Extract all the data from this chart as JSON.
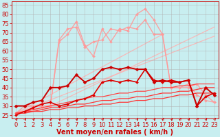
{
  "bg_color": "#c8eef0",
  "grid_color": "#b0b0b0",
  "xlabel": "Vent moyen/en rafales ( km/h )",
  "xlabel_color": "#cc0000",
  "xlabel_fontsize": 7,
  "tick_color": "#cc0000",
  "tick_fontsize": 6,
  "yticks": [
    25,
    30,
    35,
    40,
    45,
    50,
    55,
    60,
    65,
    70,
    75,
    80,
    85
  ],
  "xticks": [
    0,
    1,
    2,
    3,
    4,
    5,
    6,
    7,
    8,
    9,
    10,
    11,
    12,
    13,
    14,
    15,
    16,
    17,
    18,
    19,
    20,
    21,
    22,
    23
  ],
  "xlim": [
    -0.5,
    23.5
  ],
  "ylim": [
    23,
    87
  ],
  "series": [
    {
      "x": [
        0,
        23
      ],
      "y": [
        26,
        68
      ],
      "color": "#ffb0b0",
      "lw": 0.9,
      "marker": null,
      "alpha": 0.85,
      "zorder": 1
    },
    {
      "x": [
        0,
        17
      ],
      "y": [
        26,
        69
      ],
      "color": "#ffb0b0",
      "lw": 0.9,
      "marker": null,
      "alpha": 0.85,
      "zorder": 1
    },
    {
      "x": [
        4,
        23
      ],
      "y": [
        30,
        73
      ],
      "color": "#ffb0b0",
      "lw": 0.9,
      "marker": null,
      "alpha": 0.85,
      "zorder": 1
    },
    {
      "x": [
        0,
        1,
        2,
        3,
        4,
        5,
        6,
        7,
        8,
        9,
        10,
        11,
        12,
        13,
        14,
        15,
        16,
        17,
        18,
        19,
        20,
        21,
        22,
        23
      ],
      "y": [
        26,
        26,
        27,
        27,
        28,
        28,
        29,
        29,
        30,
        30,
        31,
        31,
        32,
        32,
        33,
        33,
        34,
        34,
        35,
        36,
        36,
        37,
        37,
        37
      ],
      "color": "#ff3333",
      "lw": 0.9,
      "marker": null,
      "alpha": 1.0,
      "zorder": 3
    },
    {
      "x": [
        0,
        1,
        2,
        3,
        4,
        5,
        6,
        7,
        8,
        9,
        10,
        11,
        12,
        13,
        14,
        15,
        16,
        17,
        18,
        19,
        20,
        21,
        22,
        23
      ],
      "y": [
        26,
        27,
        27,
        28,
        29,
        29,
        30,
        31,
        31,
        32,
        33,
        33,
        34,
        34,
        35,
        35,
        36,
        37,
        37,
        38,
        38,
        39,
        40,
        40
      ],
      "color": "#ff3333",
      "lw": 0.9,
      "marker": null,
      "alpha": 1.0,
      "zorder": 3
    },
    {
      "x": [
        0,
        1,
        2,
        3,
        4,
        5,
        6,
        7,
        8,
        9,
        10,
        11,
        12,
        13,
        14,
        15,
        16,
        17,
        18,
        19,
        20,
        21,
        22,
        23
      ],
      "y": [
        26,
        27,
        28,
        29,
        30,
        31,
        32,
        33,
        34,
        35,
        35,
        36,
        37,
        37,
        38,
        38,
        39,
        40,
        40,
        41,
        41,
        42,
        42,
        42
      ],
      "color": "#ff4444",
      "lw": 0.9,
      "marker": null,
      "alpha": 1.0,
      "zorder": 3
    },
    {
      "x": [
        0,
        1,
        2,
        3,
        4,
        5,
        6,
        7,
        8,
        9,
        10,
        11,
        12,
        13,
        14,
        15,
        16,
        17,
        18,
        19,
        20,
        21,
        22,
        23
      ],
      "y": [
        25,
        27,
        29,
        31,
        32,
        30,
        31,
        33,
        34,
        36,
        43,
        44,
        43,
        44,
        43,
        50,
        44,
        43,
        44,
        43,
        44,
        30,
        35,
        37
      ],
      "color": "#dd0000",
      "lw": 1.2,
      "marker": "D",
      "markersize": 2.0,
      "alpha": 1.0,
      "zorder": 4
    },
    {
      "x": [
        0,
        1,
        2,
        3,
        4,
        5,
        6,
        7,
        8,
        9,
        10,
        11,
        12,
        13,
        14,
        15,
        16,
        17,
        18,
        19,
        20,
        21,
        22,
        23
      ],
      "y": [
        30,
        30,
        32,
        33,
        40,
        40,
        41,
        47,
        43,
        45,
        50,
        51,
        50,
        51,
        50,
        50,
        43,
        44,
        43,
        43,
        44,
        30,
        40,
        36
      ],
      "color": "#cc0000",
      "lw": 1.4,
      "marker": "D",
      "markersize": 2.5,
      "alpha": 1.0,
      "zorder": 5
    },
    {
      "x": [
        0,
        1,
        2,
        3,
        4,
        5,
        6,
        7,
        8,
        9,
        10,
        11,
        12,
        13,
        14,
        15,
        16,
        17,
        18,
        19,
        20,
        21,
        22,
        23
      ],
      "y": [
        26,
        30,
        30,
        30,
        30,
        65,
        69,
        76,
        63,
        57,
        72,
        65,
        72,
        71,
        80,
        83,
        77,
        69,
        40,
        40,
        40,
        42,
        36,
        32
      ],
      "color": "#ff9999",
      "lw": 1.0,
      "marker": "D",
      "markersize": 2.0,
      "alpha": 0.9,
      "zorder": 2
    },
    {
      "x": [
        0,
        1,
        2,
        3,
        4,
        5,
        6,
        7,
        8,
        9,
        10,
        11,
        12,
        13,
        14,
        15,
        16,
        17,
        18,
        19,
        20,
        21,
        22,
        23
      ],
      "y": [
        26,
        27,
        28,
        29,
        30,
        66,
        72,
        73,
        62,
        65,
        66,
        72,
        71,
        73,
        72,
        77,
        69,
        69,
        40,
        40,
        42,
        36,
        33,
        32
      ],
      "color": "#ff9999",
      "lw": 1.0,
      "marker": "D",
      "markersize": 2.0,
      "alpha": 0.9,
      "zorder": 2
    }
  ],
  "arrow_color": "#cc0000"
}
